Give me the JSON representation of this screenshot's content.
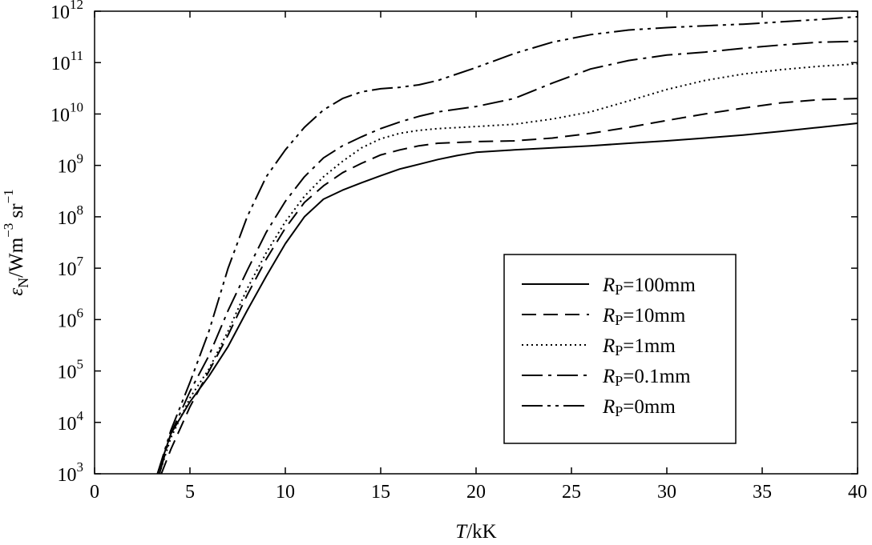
{
  "chart_data": {
    "type": "line",
    "xlabel": {
      "italic": "T",
      "rest": "/kK"
    },
    "ylabel": {
      "symbol": "ε",
      "sub": "N",
      "unit_main": "/Wm",
      "exp1": "−3",
      "unit2": " sr",
      "exp2": "−1"
    },
    "x_ticks": [
      "0",
      "5",
      "10",
      "15",
      "20",
      "25",
      "30",
      "35",
      "40"
    ],
    "y_ticks": [
      {
        "base": "10",
        "exp": "3"
      },
      {
        "base": "10",
        "exp": "4"
      },
      {
        "base": "10",
        "exp": "5"
      },
      {
        "base": "10",
        "exp": "6"
      },
      {
        "base": "10",
        "exp": "7"
      },
      {
        "base": "10",
        "exp": "8"
      },
      {
        "base": "10",
        "exp": "9"
      },
      {
        "base": "10",
        "exp": "10"
      },
      {
        "base": "10",
        "exp": "11"
      },
      {
        "base": "10",
        "exp": "12"
      }
    ],
    "xlim": [
      0,
      40
    ],
    "ylim": [
      1000,
      1000000000000
    ],
    "yscale": "log",
    "grid": false,
    "legend_position": "lower-right",
    "series": [
      {
        "name": {
          "italic": "R",
          "sub": "P",
          "rest": "=100mm"
        },
        "style": "solid",
        "x": [
          3.3,
          4,
          5,
          6,
          7,
          8,
          9,
          10,
          11,
          12,
          13,
          14,
          15,
          16,
          17,
          18,
          19,
          20,
          22,
          24,
          26,
          28,
          30,
          32,
          34,
          36,
          38,
          40
        ],
        "y": [
          1000,
          6000,
          25000,
          80000,
          300000,
          1500000,
          7000000,
          30000000,
          100000000,
          220000000,
          330000000,
          460000000,
          630000000,
          850000000,
          1050000000,
          1300000000,
          1550000000,
          1800000000,
          2000000000,
          2200000000,
          2400000000,
          2700000000,
          3000000000,
          3400000000,
          3900000000,
          4600000000,
          5500000000,
          6600000000
        ]
      },
      {
        "name": {
          "italic": "R",
          "sub": "P",
          "rest": "=10mm"
        },
        "style": "dashed",
        "x": [
          3.5,
          4,
          5,
          6,
          7,
          8,
          9,
          10,
          11,
          12,
          13,
          14,
          15,
          16,
          17,
          18,
          20,
          22,
          24,
          26,
          28,
          30,
          32,
          34,
          36,
          38,
          40
        ],
        "y": [
          1000,
          3000,
          20000,
          100000,
          500000,
          3000000,
          15000000,
          60000000,
          190000000,
          400000000,
          720000000,
          1100000000,
          1600000000,
          2000000000,
          2400000000,
          2700000000,
          2900000000,
          3000000000,
          3400000000,
          4200000000,
          5500000000,
          7500000000,
          10000000000,
          13000000000,
          16500000000,
          19000000000,
          20000000000
        ]
      },
      {
        "name": {
          "italic": "R",
          "sub": "P",
          "rest": "=1mm"
        },
        "style": "dotted",
        "x": [
          3.4,
          4,
          5,
          6,
          7,
          8,
          9,
          10,
          11,
          12,
          13,
          14,
          15,
          16,
          17,
          18,
          20,
          22,
          24,
          26,
          28,
          30,
          32,
          34,
          36,
          38,
          40
        ],
        "y": [
          1000,
          5000,
          30000,
          110000,
          600000,
          4000000,
          20000000,
          80000000,
          250000000,
          600000000,
          1200000000,
          2200000000,
          3300000000,
          4200000000,
          4800000000,
          5200000000,
          5700000000,
          6300000000,
          8000000000,
          11000000000,
          18000000000,
          30000000000,
          45000000000,
          60000000000,
          73000000000,
          85000000000,
          95000000000
        ]
      },
      {
        "name": {
          "italic": "R",
          "sub": "P",
          "rest": "=0.1mm"
        },
        "style": "dashdot",
        "x": [
          3.4,
          4,
          5,
          6,
          7,
          8,
          9,
          10,
          11,
          12,
          13,
          14,
          15,
          16,
          17,
          18,
          20,
          22,
          24,
          26,
          28,
          30,
          32,
          34,
          36,
          38,
          40
        ],
        "y": [
          1000,
          6000,
          40000,
          200000,
          1500000,
          9000000,
          50000000,
          200000000,
          600000000,
          1400000000,
          2400000000,
          3600000000,
          5200000000,
          7000000000,
          9000000000,
          11000000000,
          14000000000,
          20000000000,
          40000000000,
          75000000000,
          110000000000,
          140000000000,
          160000000000,
          190000000000,
          220000000000,
          250000000000,
          260000000000
        ]
      },
      {
        "name": {
          "italic": "R",
          "sub": "P",
          "rest": "=0mm"
        },
        "style": "dashdotdot",
        "x": [
          3.3,
          4,
          5,
          6,
          7,
          8,
          9,
          10,
          11,
          12,
          13,
          14,
          15,
          16,
          17,
          18,
          20,
          22,
          24,
          26,
          28,
          30,
          32,
          34,
          36,
          38,
          40
        ],
        "y": [
          1000,
          7000,
          60000,
          600000,
          10000000,
          100000000,
          600000000,
          2000000000,
          5500000000,
          12000000000,
          20000000000,
          27000000000,
          31000000000,
          33000000000,
          37000000000,
          45000000000,
          80000000000,
          150000000000,
          250000000000,
          350000000000,
          430000000000,
          480000000000,
          520000000000,
          560000000000,
          620000000000,
          690000000000,
          780000000000
        ]
      }
    ]
  }
}
